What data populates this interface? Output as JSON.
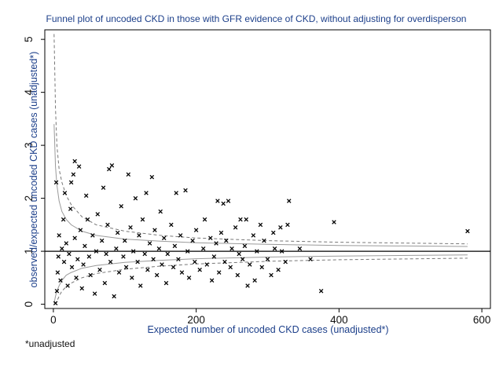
{
  "chart_data": {
    "type": "scatter",
    "title": "Funnel plot of uncoded CKD in those with GFR evidence of CKD,  without adjusting for overdisperson",
    "xlabel": "Expected number of uncoded CKD cases (unadjusted*)",
    "ylabel": "observed/expected uncoded CKD cases (unadjusted*)",
    "note": "*unadjusted",
    "xlim": [
      -12,
      612
    ],
    "ylim": [
      -0.08,
      5.18
    ],
    "xticks": [
      0,
      200,
      400,
      600
    ],
    "yticks": [
      0,
      1,
      2,
      3,
      4,
      5
    ],
    "x_tick_labels": [
      "0",
      "200",
      "400",
      "600"
    ],
    "y_tick_labels": [
      "0",
      "1",
      "2",
      "3",
      "4",
      "5"
    ],
    "reference_line": 1,
    "marker": "x",
    "grid": false,
    "legend": "none",
    "series": [
      {
        "points": [
          [
            3,
            0.02
          ],
          [
            5,
            0.25
          ],
          [
            6,
            0.6
          ],
          [
            7,
            0.9
          ],
          [
            8,
            1.3
          ],
          [
            4,
            2.3
          ],
          [
            10,
            0.45
          ],
          [
            12,
            1.05
          ],
          [
            14,
            1.6
          ],
          [
            15,
            0.8
          ],
          [
            16,
            2.1
          ],
          [
            18,
            1.15
          ],
          [
            20,
            0.35
          ],
          [
            22,
            0.95
          ],
          [
            24,
            1.8
          ],
          [
            25,
            2.3
          ],
          [
            26,
            0.7
          ],
          [
            28,
            2.45
          ],
          [
            30,
            1.25
          ],
          [
            30,
            2.7
          ],
          [
            32,
            0.5
          ],
          [
            34,
            0.85
          ],
          [
            36,
            2.6
          ],
          [
            38,
            1.4
          ],
          [
            40,
            0.3
          ],
          [
            42,
            0.75
          ],
          [
            44,
            1.1
          ],
          [
            46,
            2.05
          ],
          [
            48,
            1.6
          ],
          [
            50,
            0.9
          ],
          [
            52,
            0.55
          ],
          [
            55,
            1.3
          ],
          [
            58,
            0.2
          ],
          [
            60,
            1.0
          ],
          [
            62,
            1.7
          ],
          [
            65,
            0.65
          ],
          [
            68,
            1.2
          ],
          [
            70,
            2.2
          ],
          [
            72,
            0.4
          ],
          [
            74,
            0.95
          ],
          [
            76,
            1.5
          ],
          [
            78,
            2.55
          ],
          [
            80,
            0.8
          ],
          [
            82,
            2.62
          ],
          [
            85,
            0.15
          ],
          [
            88,
            1.05
          ],
          [
            90,
            1.35
          ],
          [
            92,
            0.6
          ],
          [
            95,
            1.85
          ],
          [
            98,
            0.9
          ],
          [
            100,
            1.2
          ],
          [
            102,
            0.7
          ],
          [
            105,
            2.45
          ],
          [
            108,
            1.45
          ],
          [
            110,
            0.5
          ],
          [
            112,
            1.0
          ],
          [
            115,
            2.0
          ],
          [
            118,
            0.8
          ],
          [
            120,
            1.3
          ],
          [
            122,
            0.35
          ],
          [
            125,
            1.6
          ],
          [
            128,
            0.95
          ],
          [
            130,
            2.1
          ],
          [
            132,
            0.65
          ],
          [
            135,
            1.15
          ],
          [
            138,
            2.4
          ],
          [
            140,
            0.85
          ],
          [
            142,
            1.4
          ],
          [
            145,
            0.55
          ],
          [
            148,
            1.05
          ],
          [
            150,
            1.75
          ],
          [
            152,
            0.75
          ],
          [
            155,
            1.25
          ],
          [
            158,
            0.4
          ],
          [
            160,
            0.95
          ],
          [
            165,
            1.5
          ],
          [
            168,
            0.7
          ],
          [
            170,
            1.1
          ],
          [
            172,
            2.1
          ],
          [
            175,
            0.85
          ],
          [
            178,
            1.3
          ],
          [
            180,
            0.6
          ],
          [
            185,
            2.15
          ],
          [
            188,
            1.0
          ],
          [
            190,
            0.5
          ],
          [
            195,
            1.2
          ],
          [
            198,
            0.8
          ],
          [
            200,
            1.4
          ],
          [
            205,
            0.65
          ],
          [
            210,
            1.05
          ],
          [
            212,
            1.6
          ],
          [
            215,
            0.75
          ],
          [
            220,
            1.25
          ],
          [
            222,
            0.45
          ],
          [
            225,
            0.9
          ],
          [
            228,
            1.15
          ],
          [
            230,
            1.95
          ],
          [
            232,
            0.6
          ],
          [
            235,
            1.35
          ],
          [
            238,
            1.9
          ],
          [
            240,
            0.8
          ],
          [
            242,
            1.2
          ],
          [
            245,
            1.95
          ],
          [
            248,
            0.7
          ],
          [
            250,
            1.05
          ],
          [
            255,
            1.45
          ],
          [
            258,
            0.55
          ],
          [
            260,
            0.95
          ],
          [
            262,
            1.6
          ],
          [
            265,
            0.85
          ],
          [
            268,
            1.1
          ],
          [
            270,
            1.6
          ],
          [
            272,
            0.35
          ],
          [
            275,
            0.75
          ],
          [
            280,
            1.3
          ],
          [
            282,
            0.45
          ],
          [
            285,
            1.0
          ],
          [
            290,
            1.5
          ],
          [
            292,
            0.7
          ],
          [
            295,
            1.2
          ],
          [
            300,
            0.85
          ],
          [
            305,
            0.55
          ],
          [
            308,
            1.35
          ],
          [
            310,
            1.05
          ],
          [
            315,
            0.65
          ],
          [
            318,
            1.45
          ],
          [
            320,
            1.0
          ],
          [
            325,
            0.8
          ],
          [
            328,
            1.5
          ],
          [
            330,
            1.95
          ],
          [
            345,
            1.05
          ],
          [
            360,
            0.85
          ],
          [
            375,
            0.25
          ],
          [
            393,
            1.55
          ],
          [
            580,
            1.38
          ]
        ]
      }
    ],
    "limit_lines": [
      {
        "name": "95% limits",
        "style": "solid grey",
        "upper": [
          [
            1,
            3.4
          ],
          [
            3,
            2.6
          ],
          [
            5,
            2.25
          ],
          [
            8,
            1.95
          ],
          [
            12,
            1.75
          ],
          [
            18,
            1.6
          ],
          [
            25,
            1.5
          ],
          [
            40,
            1.38
          ],
          [
            60,
            1.3
          ],
          [
            100,
            1.23
          ],
          [
            150,
            1.19
          ],
          [
            200,
            1.16
          ],
          [
            300,
            1.13
          ],
          [
            400,
            1.11
          ],
          [
            580,
            1.09
          ]
        ],
        "lower": [
          [
            1,
            0.02
          ],
          [
            3,
            0.15
          ],
          [
            5,
            0.25
          ],
          [
            8,
            0.35
          ],
          [
            12,
            0.45
          ],
          [
            18,
            0.55
          ],
          [
            25,
            0.6
          ],
          [
            40,
            0.68
          ],
          [
            60,
            0.73
          ],
          [
            100,
            0.79
          ],
          [
            150,
            0.83
          ],
          [
            200,
            0.86
          ],
          [
            300,
            0.89
          ],
          [
            400,
            0.91
          ],
          [
            580,
            0.93
          ]
        ]
      },
      {
        "name": "99.8% limits",
        "style": "dashed grey",
        "upper": [
          [
            1,
            5.1
          ],
          [
            3,
            3.7
          ],
          [
            5,
            3.0
          ],
          [
            8,
            2.55
          ],
          [
            12,
            2.3
          ],
          [
            18,
            2.05
          ],
          [
            25,
            1.88
          ],
          [
            40,
            1.65
          ],
          [
            60,
            1.5
          ],
          [
            100,
            1.38
          ],
          [
            150,
            1.3
          ],
          [
            200,
            1.25
          ],
          [
            300,
            1.2
          ],
          [
            400,
            1.17
          ],
          [
            580,
            1.14
          ]
        ],
        "lower": [
          [
            2,
            0.0
          ],
          [
            5,
            0.06
          ],
          [
            8,
            0.15
          ],
          [
            12,
            0.25
          ],
          [
            18,
            0.33
          ],
          [
            25,
            0.4
          ],
          [
            40,
            0.5
          ],
          [
            60,
            0.58
          ],
          [
            100,
            0.66
          ],
          [
            150,
            0.72
          ],
          [
            200,
            0.76
          ],
          [
            300,
            0.81
          ],
          [
            400,
            0.84
          ],
          [
            580,
            0.87
          ]
        ]
      }
    ]
  }
}
